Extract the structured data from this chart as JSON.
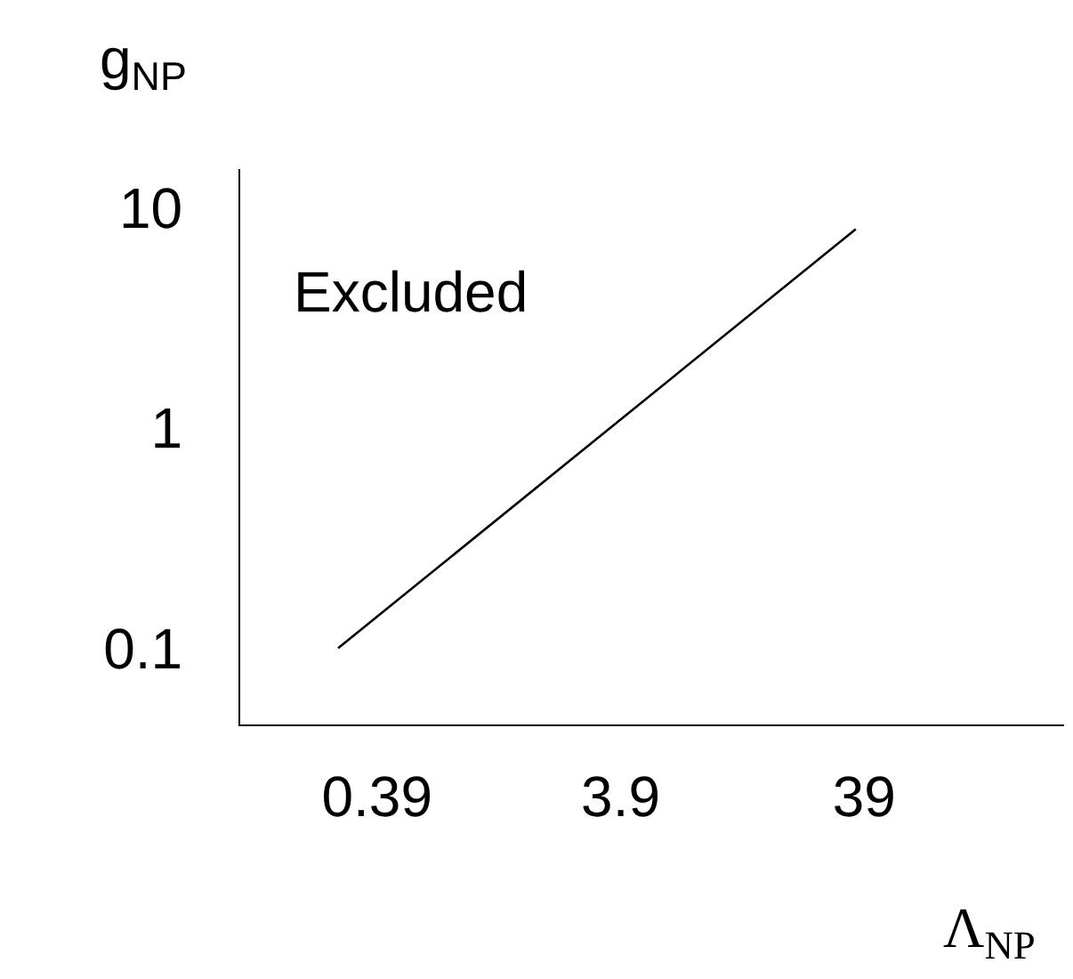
{
  "chart_data": {
    "type": "line",
    "xlabel": "Λ$_{NP}$",
    "ylabel": "g$_{NP}$",
    "annotations": [
      "Excluded"
    ],
    "x": [
      0.27,
      36
    ],
    "series": [
      {
        "color": "#000000",
        "values": [
          0.1,
          8
        ]
      }
    ],
    "log": "xy",
    "xlim": [
      0.107,
      258
    ],
    "ylim": [
      0.045,
      15
    ],
    "xticks": [
      0.39,
      3.9,
      39
    ],
    "yticks": [
      0.1,
      1,
      10
    ],
    "grid": false
  }
}
